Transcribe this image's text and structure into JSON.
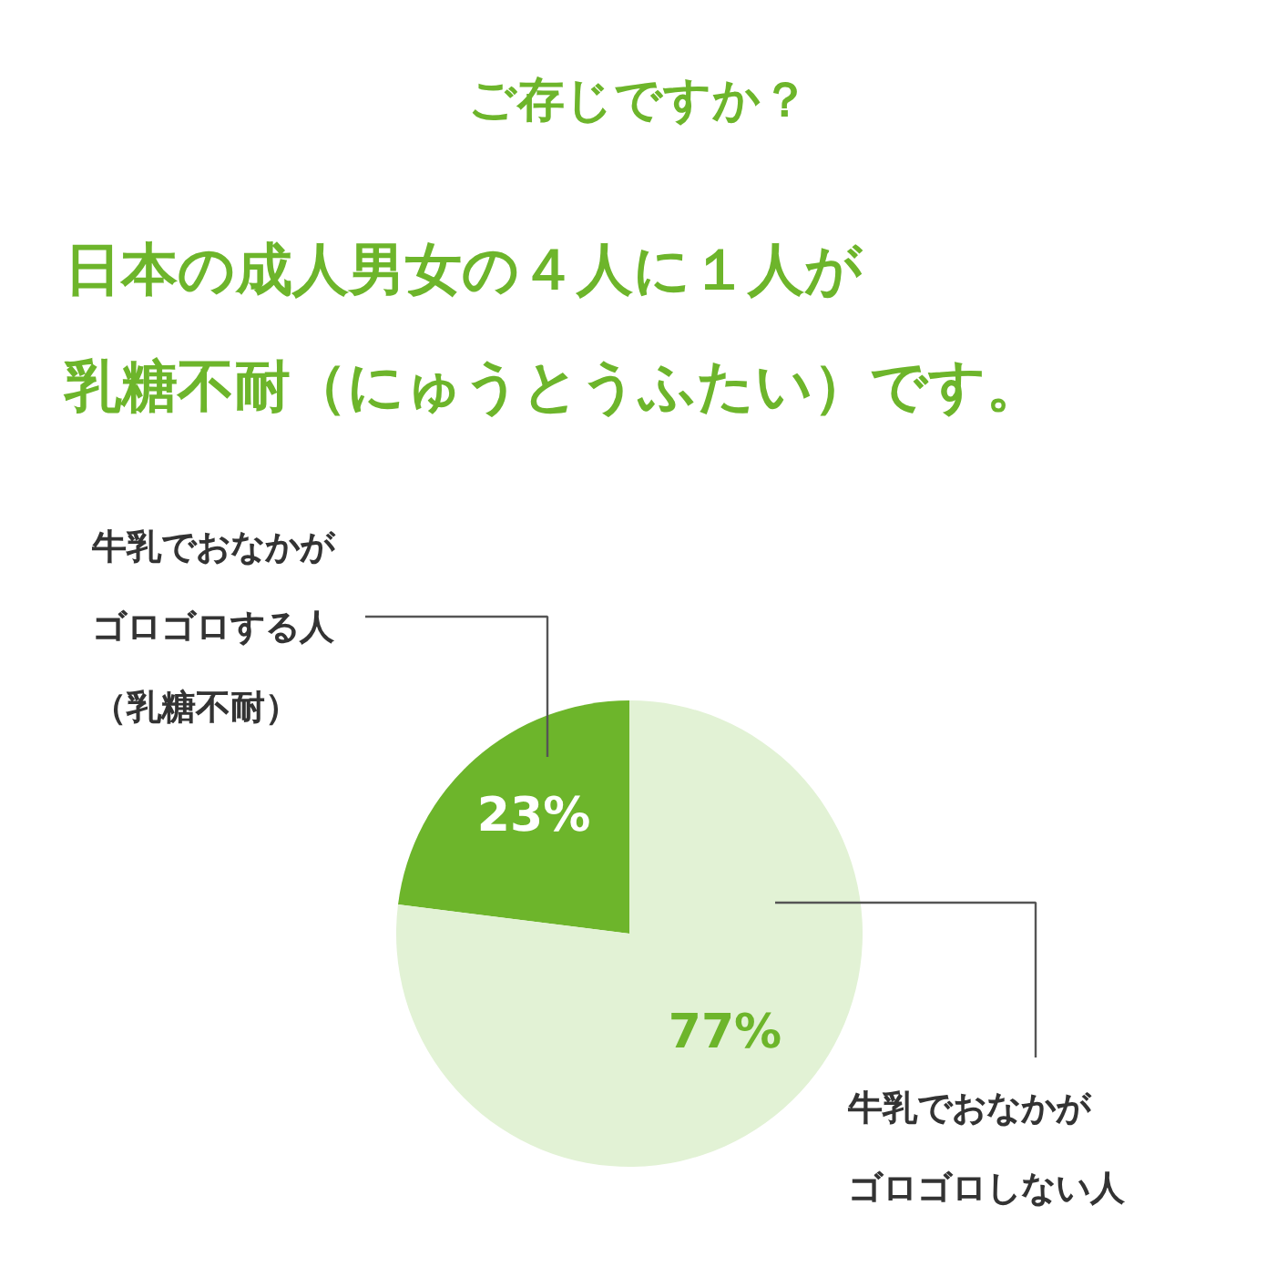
{
  "chart_data": {
    "type": "pie",
    "title": "ご存じですか？",
    "subtitle": "日本の成人男女の４人に１人が乳糖不耐（にゅうとうふたい）です。",
    "categories": [
      "牛乳でおなかがゴロゴロする人（乳糖不耐）",
      "牛乳でおなかがゴロゴロしない人"
    ],
    "values": [
      23,
      77
    ],
    "colors": [
      "#6db52b",
      "#e2f2d5"
    ],
    "value_labels": [
      "23%",
      "77%"
    ]
  }
}
